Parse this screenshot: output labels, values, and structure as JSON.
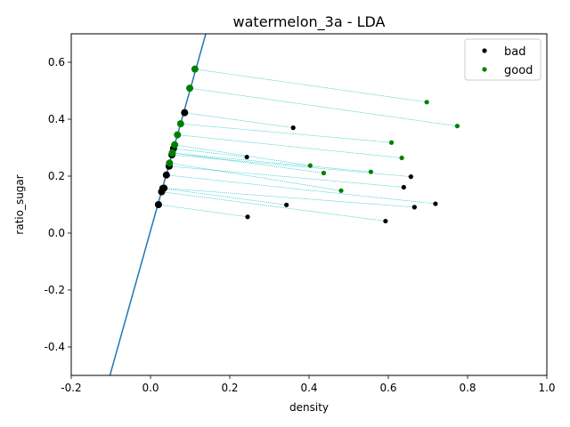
{
  "chart_data": {
    "type": "scatter",
    "title": "watermelon_3a - LDA",
    "xlabel": "density",
    "ylabel": "ratio_sugar",
    "xlim": [
      -0.2,
      1.0
    ],
    "ylim": [
      -0.5,
      0.7
    ],
    "xticks": [
      "-0.2",
      "0.0",
      "0.2",
      "0.4",
      "0.6",
      "0.8",
      "1.0"
    ],
    "yticks": [
      "-0.4",
      "-0.2",
      "0.0",
      "0.2",
      "0.4",
      "0.6"
    ],
    "xtick_values": [
      -0.2,
      0.0,
      0.2,
      0.4,
      0.6,
      0.8,
      1.0
    ],
    "ytick_values": [
      -0.4,
      -0.2,
      0.0,
      0.2,
      0.4,
      0.6
    ],
    "legend": {
      "position": "top-right",
      "entries": [
        "bad",
        "good"
      ]
    },
    "colors": {
      "bad": "#000000",
      "good": "#008000",
      "line": "#1f77b4",
      "projection": "#00bfbf"
    },
    "lda_line": {
      "slope": 4.96,
      "intercept": 0.008
    },
    "series": [
      {
        "name": "bad",
        "points": [
          [
            0.666,
            0.091
          ],
          [
            0.243,
            0.267
          ],
          [
            0.245,
            0.057
          ],
          [
            0.343,
            0.099
          ],
          [
            0.639,
            0.161
          ],
          [
            0.657,
            0.198
          ],
          [
            0.36,
            0.37
          ],
          [
            0.593,
            0.042
          ],
          [
            0.719,
            0.103
          ]
        ],
        "projections": [
          [
            0.034,
            0.158
          ],
          [
            0.058,
            0.297
          ],
          [
            0.02,
            0.1
          ],
          [
            0.031,
            0.157
          ],
          [
            0.047,
            0.235
          ],
          [
            0.054,
            0.275
          ],
          [
            0.086,
            0.423
          ],
          [
            0.028,
            0.145
          ],
          [
            0.04,
            0.204
          ]
        ]
      },
      {
        "name": "good",
        "points": [
          [
            0.697,
            0.46
          ],
          [
            0.774,
            0.376
          ],
          [
            0.634,
            0.264
          ],
          [
            0.608,
            0.318
          ],
          [
            0.556,
            0.215
          ],
          [
            0.403,
            0.237
          ],
          [
            0.481,
            0.149
          ],
          [
            0.437,
            0.211
          ]
        ],
        "projections": [
          [
            0.112,
            0.576
          ],
          [
            0.099,
            0.509
          ],
          [
            0.068,
            0.345
          ],
          [
            0.076,
            0.384
          ],
          [
            0.055,
            0.281
          ],
          [
            0.061,
            0.31
          ],
          [
            0.048,
            0.246
          ],
          [
            0.055,
            0.282
          ]
        ]
      }
    ]
  }
}
